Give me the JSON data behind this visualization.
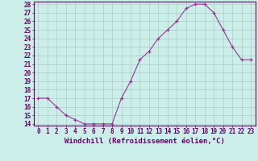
{
  "x": [
    0,
    1,
    2,
    3,
    4,
    5,
    6,
    7,
    8,
    9,
    10,
    11,
    12,
    13,
    14,
    15,
    16,
    17,
    18,
    19,
    20,
    21,
    22,
    23
  ],
  "y": [
    17,
    17,
    16,
    15,
    14.5,
    14,
    14,
    14,
    14,
    17,
    19,
    21.5,
    22.5,
    24,
    25,
    26,
    27.5,
    28,
    28,
    27,
    25,
    23,
    21.5,
    21.5
  ],
  "line_color": "#993399",
  "marker": "+",
  "background_color": "#cceee8",
  "grid_color": "#aacccc",
  "xlabel": "Windchill (Refroidissement éolien,°C)",
  "ylabel": "",
  "ylim": [
    14,
    28
  ],
  "xlim": [
    -0.5,
    23.5
  ],
  "yticks": [
    14,
    15,
    16,
    17,
    18,
    19,
    20,
    21,
    22,
    23,
    24,
    25,
    26,
    27,
    28
  ],
  "xticks": [
    0,
    1,
    2,
    3,
    4,
    5,
    6,
    7,
    8,
    9,
    10,
    11,
    12,
    13,
    14,
    15,
    16,
    17,
    18,
    19,
    20,
    21,
    22,
    23
  ],
  "tick_label_fontsize": 5.5,
  "xlabel_fontsize": 6.5,
  "axis_color": "#660066",
  "spine_color": "#660066"
}
